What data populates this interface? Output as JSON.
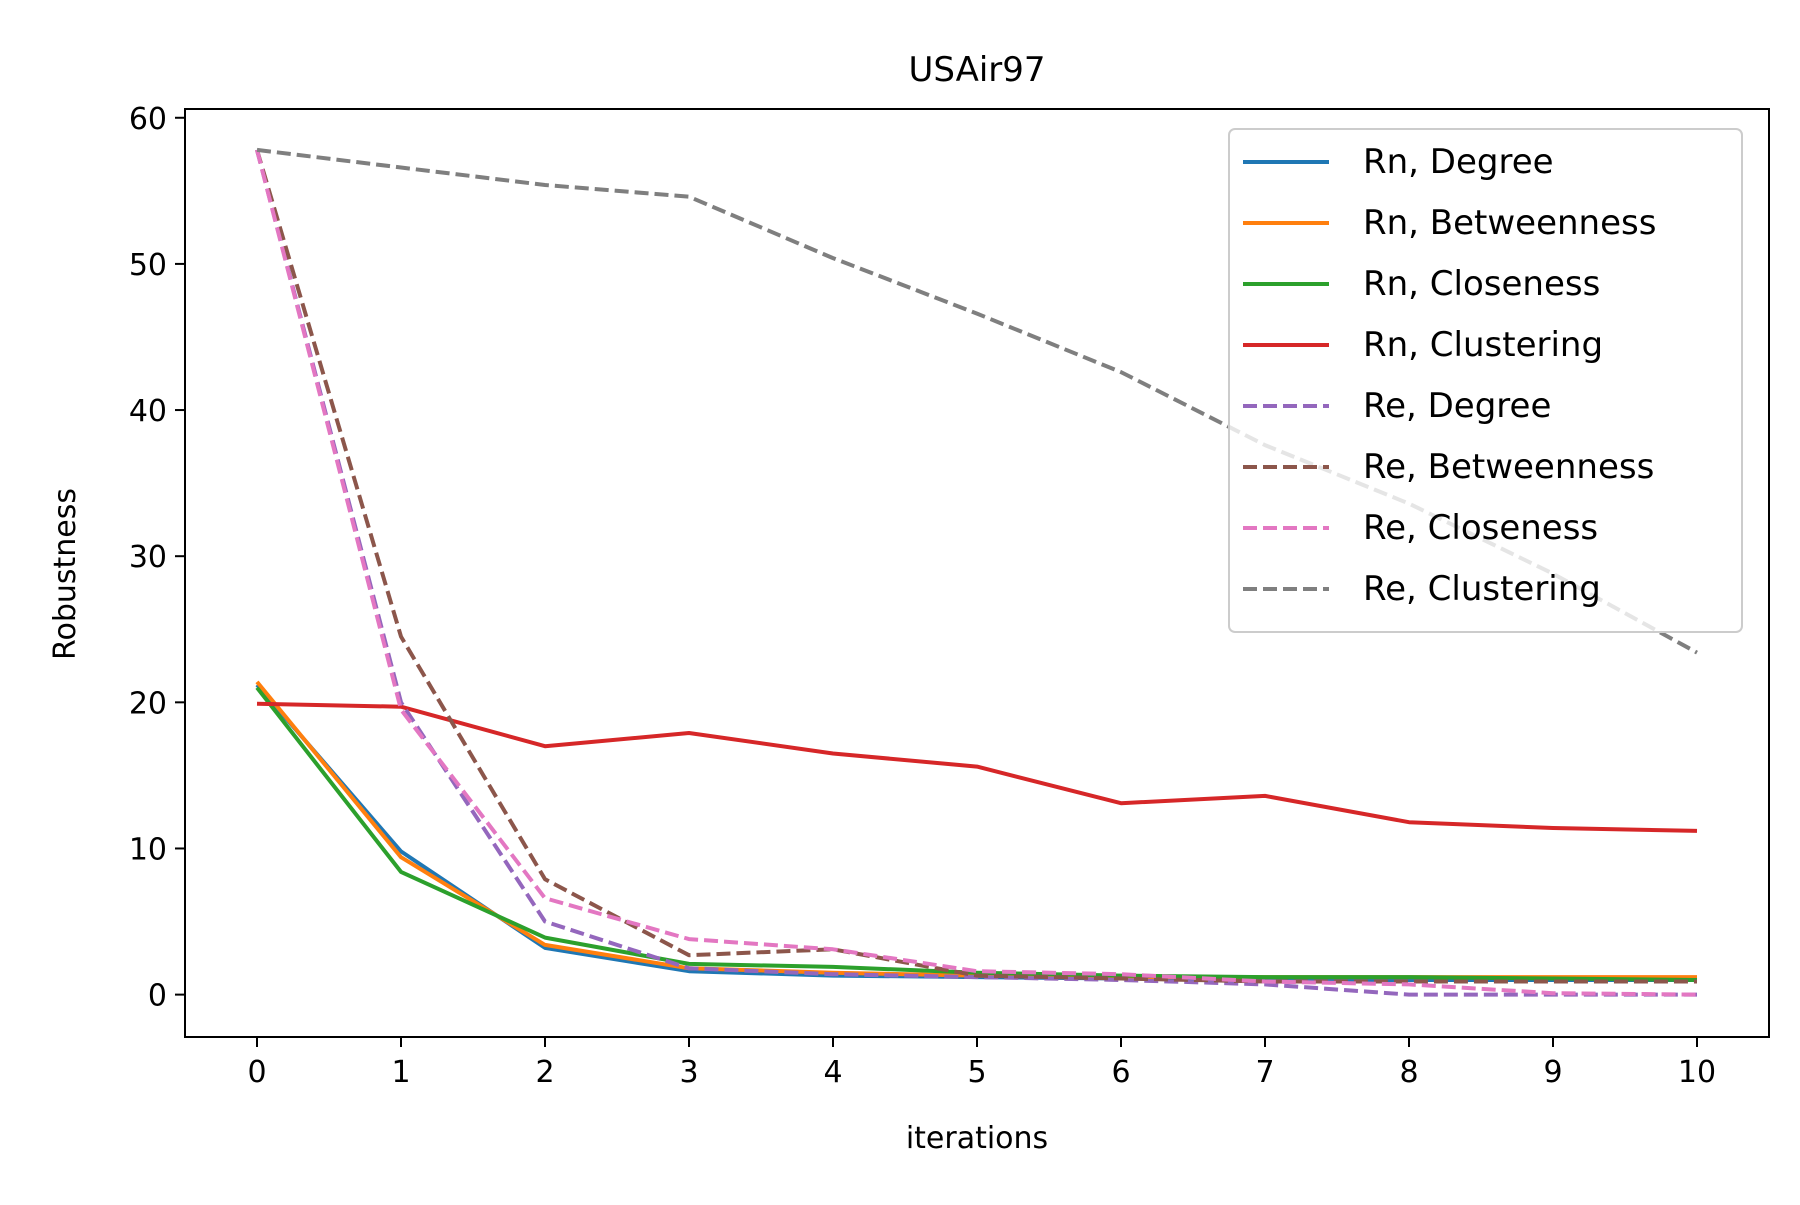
{
  "chart_data": {
    "type": "line",
    "title": "USAir97",
    "xlabel": "iterations",
    "ylabel": "Robustness",
    "x": [
      0,
      1,
      2,
      3,
      4,
      5,
      6,
      7,
      8,
      9,
      10
    ],
    "xlim": [
      -0.5,
      10.5
    ],
    "ylim": [
      -2.9,
      60.6
    ],
    "xticks": [
      "0",
      "1",
      "2",
      "3",
      "4",
      "5",
      "6",
      "7",
      "8",
      "9",
      "10"
    ],
    "yticks": [
      "0",
      "10",
      "20",
      "30",
      "40",
      "50",
      "60"
    ],
    "grid": false,
    "legend_position": "top-right",
    "series": [
      {
        "name": "Rn, Degree",
        "color": "#1f77b4",
        "dash": "solid",
        "values": [
          21.2,
          9.8,
          3.2,
          1.6,
          1.3,
          1.2,
          1.1,
          1.0,
          1.0,
          1.0,
          1.0
        ]
      },
      {
        "name": "Rn, Betweenness",
        "color": "#ff7f0e",
        "dash": "solid",
        "values": [
          21.4,
          9.4,
          3.4,
          1.8,
          1.5,
          1.3,
          1.2,
          1.2,
          1.2,
          1.2,
          1.2
        ]
      },
      {
        "name": "Rn, Closeness",
        "color": "#2ca02c",
        "dash": "solid",
        "values": [
          21.0,
          8.4,
          3.9,
          2.1,
          1.9,
          1.5,
          1.3,
          1.2,
          1.2,
          1.1,
          1.0
        ]
      },
      {
        "name": "Rn, Clustering",
        "color": "#d62728",
        "dash": "solid",
        "values": [
          19.9,
          19.7,
          17.0,
          17.9,
          16.5,
          15.6,
          13.1,
          13.6,
          11.8,
          11.4,
          11.2
        ]
      },
      {
        "name": "Re, Degree",
        "color": "#9467bd",
        "dash": "dashed",
        "values": [
          57.8,
          20.0,
          5.0,
          1.8,
          1.4,
          1.2,
          1.0,
          0.7,
          0.0,
          0.0,
          0.0
        ]
      },
      {
        "name": "Re, Betweenness",
        "color": "#8c564b",
        "dash": "dashed",
        "values": [
          57.8,
          24.5,
          7.9,
          2.7,
          3.1,
          1.3,
          1.1,
          0.9,
          0.9,
          0.9,
          0.9
        ]
      },
      {
        "name": "Re, Closeness",
        "color": "#e377c2",
        "dash": "dashed",
        "values": [
          57.8,
          19.5,
          6.6,
          3.8,
          3.1,
          1.6,
          1.4,
          0.9,
          0.7,
          0.1,
          0.0
        ]
      },
      {
        "name": "Re, Clustering",
        "color": "#7f7f7f",
        "dash": "dashed",
        "values": [
          57.8,
          56.6,
          55.4,
          54.6,
          50.4,
          46.6,
          42.6,
          37.6,
          33.6,
          28.8,
          23.4
        ]
      }
    ]
  }
}
